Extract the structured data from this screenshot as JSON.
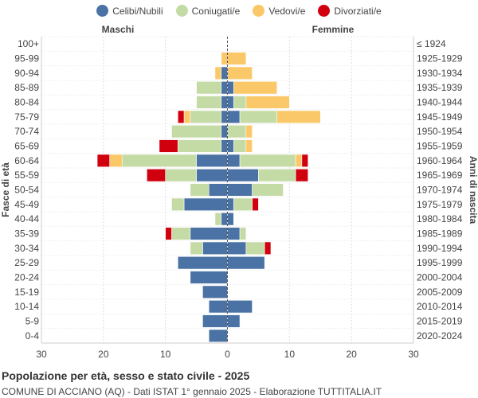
{
  "title": "Popolazione per età, sesso e stato civile - 2025",
  "subtitle": "COMUNE DI ACCIANO (AQ) - Dati ISTAT 1° gennaio 2025 - Elaborazione TUTTITALIA.IT",
  "left_header": "Maschi",
  "right_header": "Femmine",
  "chart_data": {
    "type": "bar",
    "orientation": "horizontal",
    "stacked": true,
    "ylabel_left": "Fasce di età",
    "ylabel_right": "Anni di nascita",
    "xlim": [
      -30,
      30
    ],
    "xticks": [
      "30",
      "20",
      "10",
      "0",
      "10",
      "20",
      "30"
    ],
    "legend": [
      {
        "name": "Celibi/Nubili",
        "color": "#4a72a4"
      },
      {
        "name": "Coniugati/e",
        "color": "#c5dba6"
      },
      {
        "name": "Vedovi/e",
        "color": "#fbc869"
      },
      {
        "name": "Divorziati/e",
        "color": "#d0000f"
      }
    ],
    "age_groups": [
      "100+",
      "95-99",
      "90-94",
      "85-89",
      "80-84",
      "75-79",
      "70-74",
      "65-69",
      "60-64",
      "55-59",
      "50-54",
      "45-49",
      "40-44",
      "35-39",
      "30-34",
      "25-29",
      "20-24",
      "15-19",
      "10-14",
      "5-9",
      "0-4"
    ],
    "birth_years": [
      "≤ 1924",
      "1925-1929",
      "1930-1934",
      "1935-1939",
      "1940-1944",
      "1945-1949",
      "1950-1954",
      "1955-1959",
      "1960-1964",
      "1965-1969",
      "1970-1974",
      "1975-1979",
      "1980-1984",
      "1985-1989",
      "1990-1994",
      "1995-1999",
      "2000-2004",
      "2005-2009",
      "2010-2014",
      "2015-2019",
      "2020-2024"
    ],
    "males": {
      "celibi": [
        0,
        0,
        1,
        1,
        1,
        1,
        1,
        1,
        5,
        5,
        3,
        7,
        1,
        6,
        4,
        8,
        6,
        4,
        3,
        4,
        3
      ],
      "coniugati": [
        0,
        0,
        0,
        4,
        4,
        5,
        8,
        7,
        12,
        5,
        3,
        2,
        1,
        3,
        2,
        0,
        0,
        0,
        0,
        0,
        0
      ],
      "vedovi": [
        0,
        1,
        1,
        0,
        0,
        1,
        0,
        0,
        2,
        0,
        0,
        0,
        0,
        0,
        0,
        0,
        0,
        0,
        0,
        0,
        0
      ],
      "divorziati": [
        0,
        0,
        0,
        0,
        0,
        1,
        0,
        3,
        2,
        3,
        0,
        0,
        0,
        1,
        0,
        0,
        0,
        0,
        0,
        0,
        0
      ]
    },
    "females": {
      "nubili": [
        0,
        0,
        0,
        1,
        1,
        2,
        0,
        1,
        2,
        5,
        4,
        1,
        1,
        2,
        3,
        6,
        0,
        0,
        4,
        2,
        0
      ],
      "coniugate": [
        0,
        0,
        0,
        0,
        2,
        6,
        3,
        2,
        9,
        6,
        5,
        3,
        0,
        1,
        3,
        0,
        0,
        0,
        0,
        0,
        0
      ],
      "vedove": [
        0,
        3,
        4,
        7,
        7,
        7,
        1,
        1,
        1,
        0,
        0,
        0,
        0,
        0,
        0,
        0,
        0,
        0,
        0,
        0,
        0
      ],
      "divorziate": [
        0,
        0,
        0,
        0,
        0,
        0,
        0,
        0,
        1,
        2,
        0,
        1,
        0,
        0,
        1,
        0,
        0,
        0,
        0,
        0,
        0
      ]
    }
  }
}
